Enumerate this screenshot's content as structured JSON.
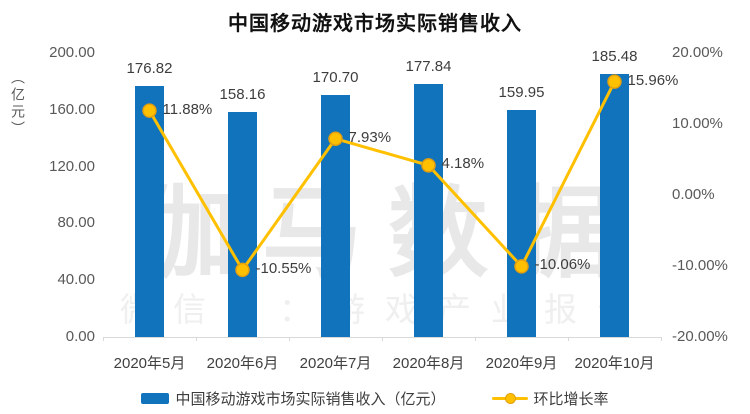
{
  "title": "中国移动游戏市场实际销售收入",
  "watermark": {
    "line1": "伽马数据",
    "line2": "微信号：游戏产业报告"
  },
  "colors": {
    "bar": "#1173BB",
    "line": "#FFC000",
    "marker_fill": "#FFC000",
    "marker_stroke": "#E29F10",
    "axis_text": "#595959",
    "label_text": "#3d3d3d",
    "axis_line": "#D9D9D9",
    "watermark1": "#E8E8E8",
    "watermark2": "#EFEFEF"
  },
  "chart_data": {
    "type": "bar",
    "title": "中国移动游戏市场实际销售收入",
    "categories": [
      "2020年5月",
      "2020年6月",
      "2020年7月",
      "2020年8月",
      "2020年9月",
      "2020年10月"
    ],
    "series": [
      {
        "name": "中国移动游戏市场实际销售收入（亿元）",
        "kind": "bar",
        "axis": "left",
        "values": [
          176.82,
          158.16,
          170.7,
          177.84,
          159.95,
          185.48
        ],
        "labels": [
          "176.82",
          "158.16",
          "170.70",
          "177.84",
          "159.95",
          "185.48"
        ]
      },
      {
        "name": "环比增长率",
        "kind": "line",
        "axis": "right",
        "values": [
          11.88,
          -10.55,
          7.93,
          4.18,
          -10.06,
          15.96
        ],
        "labels": [
          "11.88%",
          "-10.55%",
          "7.93%",
          "4.18%",
          "-10.06%",
          "15.96%"
        ]
      }
    ],
    "left_axis": {
      "name": "（亿元）",
      "min": 0,
      "max": 200,
      "ticks": [
        "200.00",
        "160.00",
        "120.00",
        "80.00",
        "40.00",
        "0.00"
      ]
    },
    "right_axis": {
      "min": -20,
      "max": 20,
      "ticks": [
        "20.00%",
        "10.00%",
        "0.00%",
        "-10.00%",
        "-20.00%"
      ]
    },
    "grid": false,
    "legend_position": "bottom"
  }
}
